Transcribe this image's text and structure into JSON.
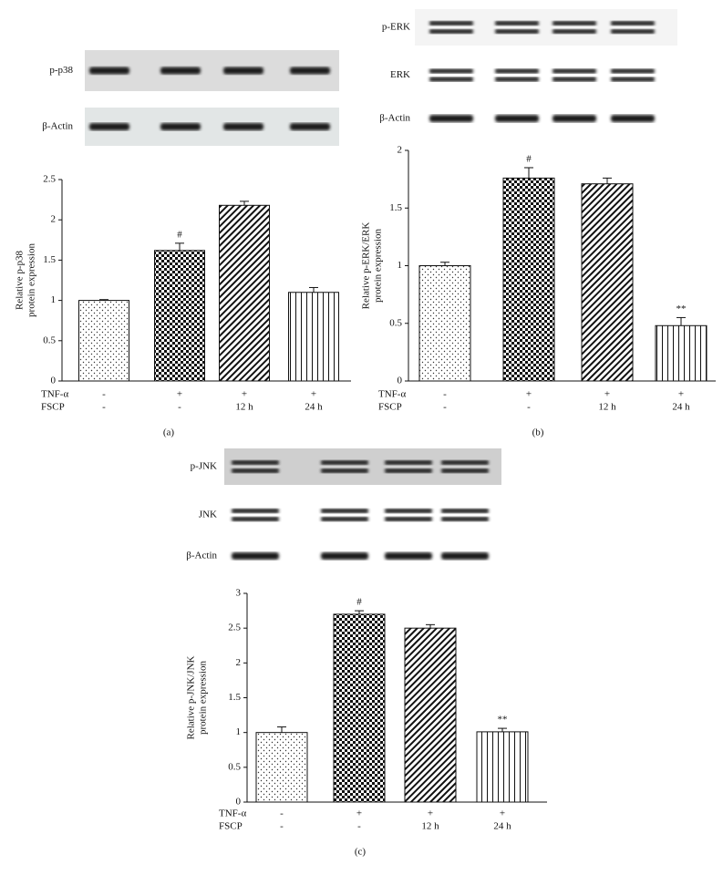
{
  "chart_data": [
    {
      "type": "bar",
      "panel": "(a)",
      "blot_labels": [
        "p-p38",
        "β-Actin"
      ],
      "ylabel": [
        "Relative p-p38",
        "protein expression"
      ],
      "values": [
        1.0,
        1.62,
        2.18,
        1.1
      ],
      "errors": [
        0.01,
        0.09,
        0.05,
        0.06
      ],
      "significance": [
        null,
        "#",
        null,
        null
      ],
      "patterns": [
        "dots",
        "checker",
        "diagonal",
        "vertical"
      ],
      "ylim": [
        0,
        2.5
      ],
      "yticks": [
        0,
        0.5,
        1,
        1.5,
        2,
        2.5
      ],
      "treatment_rows": [
        {
          "name": "TNF-α",
          "labels": [
            "-",
            "+",
            "+",
            "+"
          ]
        },
        {
          "name": "FSCP",
          "labels": [
            "-",
            "-",
            "12 h",
            "24 h"
          ]
        }
      ]
    },
    {
      "type": "bar",
      "panel": "(b)",
      "blot_labels": [
        "p-ERK",
        "ERK",
        "β-Actin"
      ],
      "ylabel": [
        "Relative p-ERK/ERK",
        "protein expression"
      ],
      "values": [
        1.0,
        1.76,
        1.71,
        0.48
      ],
      "errors": [
        0.03,
        0.09,
        0.05,
        0.07
      ],
      "significance": [
        null,
        "#",
        null,
        "**"
      ],
      "patterns": [
        "dots",
        "checker",
        "diagonal",
        "vertical"
      ],
      "ylim": [
        0,
        2
      ],
      "yticks": [
        0,
        0.5,
        1,
        1.5,
        2
      ],
      "treatment_rows": [
        {
          "name": "TNF-α",
          "labels": [
            "-",
            "+",
            "+",
            "+"
          ]
        },
        {
          "name": "FSCP",
          "labels": [
            "-",
            "-",
            "12 h",
            "24 h"
          ]
        }
      ]
    },
    {
      "type": "bar",
      "panel": "(c)",
      "blot_labels": [
        "p-JNK",
        "JNK",
        "β-Actin"
      ],
      "ylabel": [
        "Relative p-JNK/JNK",
        "protein expression"
      ],
      "values": [
        1.0,
        2.7,
        2.5,
        1.01
      ],
      "errors": [
        0.08,
        0.05,
        0.05,
        0.05
      ],
      "significance": [
        null,
        "#",
        null,
        "**"
      ],
      "patterns": [
        "dots",
        "checker",
        "diagonal",
        "vertical"
      ],
      "ylim": [
        0,
        3
      ],
      "yticks": [
        0,
        0.5,
        1,
        1.5,
        2,
        2.5,
        3
      ],
      "treatment_rows": [
        {
          "name": "TNF-α",
          "labels": [
            "-",
            "+",
            "+",
            "+"
          ]
        },
        {
          "name": "FSCP",
          "labels": [
            "-",
            "-",
            "12 h",
            "24 h"
          ]
        }
      ]
    }
  ]
}
